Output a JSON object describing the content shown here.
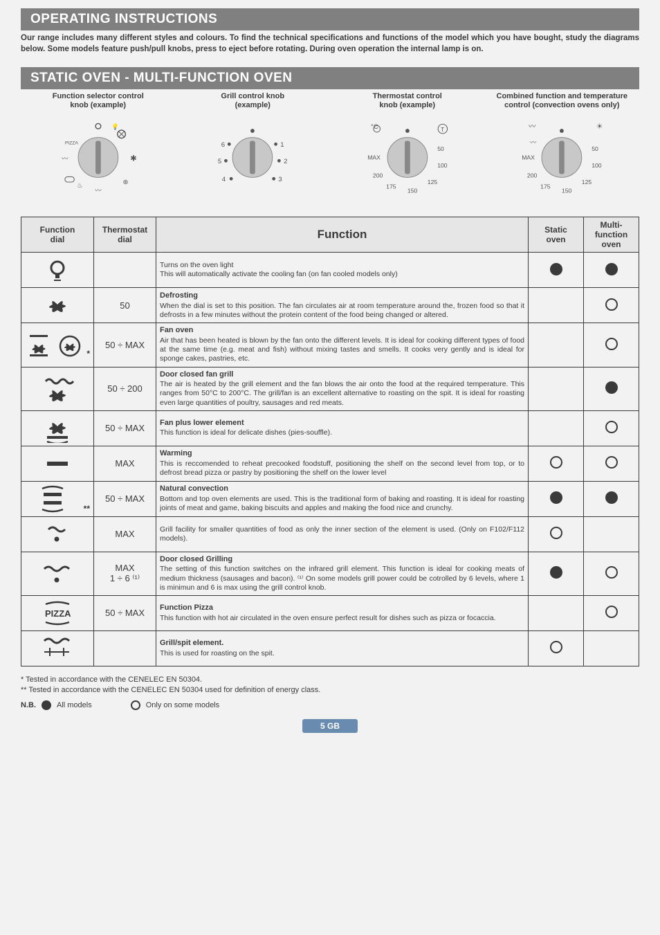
{
  "page": {
    "title1": "OPERATING INSTRUCTIONS",
    "intro": "Our range includes many different styles and colours. To find the technical specifications and functions of the model which you have bought, study the diagrams below. Some models feature push/pull knobs, press to eject before rotating. During oven operation the internal lamp is on.",
    "title2": "STATIC OVEN - MULTI-FUNCTION OVEN"
  },
  "knobs": [
    {
      "label1": "Function selector control",
      "label2": "knob (example)"
    },
    {
      "label1": "Grill control knob",
      "label2": "(example)"
    },
    {
      "label1": "Thermostat control",
      "label2": "knob (example)"
    },
    {
      "label1": "Combined function and temperature",
      "label2": "control (convection ovens only)"
    }
  ],
  "table": {
    "headers": {
      "dial": "Function\ndial",
      "thermo": "Thermostat\ndial",
      "func": "Function",
      "static": "Static\noven",
      "multi": "Multi-function\noven"
    },
    "rows": [
      {
        "icon": "light",
        "thermo": "",
        "title": "",
        "desc": "Turns on the oven light\nThis will automatically activate the cooling fan (on fan cooled models only)",
        "static": "filled",
        "multi": "filled"
      },
      {
        "icon": "fan",
        "thermo": "50",
        "title": "Defrosting",
        "desc": "When the dial is set to this position. The fan circulates air at room temperature around the, frozen food so that it defrosts in a few minutes without the protein content of the food being changed or altered.",
        "static": "",
        "multi": "empty"
      },
      {
        "icon": "fanoven",
        "star": "*",
        "thermo": "50 ÷ MAX",
        "title": "Fan oven",
        "desc": "Air that has been heated is blown by the fan onto the different levels. It is ideal for cooking different types of food at the same time (e.g. meat and fish) without mixing tastes and smells. It cooks very gently and is ideal for sponge cakes, pastries, etc.",
        "static": "",
        "multi": "empty"
      },
      {
        "icon": "grillfan",
        "thermo": "50 ÷ 200",
        "title": "Door closed fan grill",
        "desc": "The air is heated by the grill element and the fan blows the air onto the food at the required temperature. This ranges from 50°C to 200°C. The grill/fan is an excellent alternative to roasting on the spit. It is ideal for roasting even large quantities of poultry, sausages and red meats.",
        "static": "",
        "multi": "filled"
      },
      {
        "icon": "fanlower",
        "thermo": "50 ÷ MAX",
        "title": "Fan plus lower element",
        "desc": "This function is ideal for delicate dishes (pies-souffle).",
        "static": "",
        "multi": "empty"
      },
      {
        "icon": "warming",
        "thermo": "MAX",
        "title": "Warming",
        "desc": "This is reccomended to reheat precooked foodstuff, positioning the shelf on the second level from top, or to defrost bread pizza or pastry by positioning the shelf on the lower level",
        "static": "empty",
        "multi": "empty"
      },
      {
        "icon": "natural",
        "star": "**",
        "thermo": "50 ÷ MAX",
        "title": "Natural convection",
        "desc": "Bottom and top oven elements are used. This is the traditional form of baking and roasting. It is ideal for roasting joints of meat and game, baking biscuits and apples and making the food nice and crunchy.",
        "static": "filled",
        "multi": "filled"
      },
      {
        "icon": "grillsmall",
        "thermo": "MAX",
        "title": "",
        "desc": "Grill facility for smaller quantities of food as only the inner section of the element is used. (Only on F102/F112 models).",
        "static": "empty",
        "multi": ""
      },
      {
        "icon": "grilllarge",
        "thermo": "MAX\n1 ÷ 6 ⁽¹⁾",
        "title": "Door closed Grilling",
        "desc": "The setting of this function switches on the infrared grill element. This function is ideal for cooking meats of medium thickness (sausages and bacon). ⁽¹⁾ On some models grill power could be cotrolled by 6 levels, where 1 is minimun and 6 is max using the grill control knob.",
        "static": "filled",
        "multi": "empty"
      },
      {
        "icon": "pizza",
        "thermo": "50 ÷ MAX",
        "title": "Function Pizza",
        "desc": "This function with hot air circulated in the oven ensure perfect result for dishes such as pizza or focaccia.",
        "static": "",
        "multi": "empty"
      },
      {
        "icon": "spit",
        "thermo": "",
        "title": "Grill/spit element.",
        "desc": "This is used for roasting on the spit.",
        "static": "empty",
        "multi": ""
      }
    ]
  },
  "footnotes": {
    "f1": "*  Tested in accordance with the CENELEC EN 50304.",
    "f2": "** Tested in accordance with the CENELEC EN 50304 used for definition of energy class.",
    "nb": "N.B.",
    "all": "All models",
    "some": "Only on some models"
  },
  "pagenum": "5 GB"
}
